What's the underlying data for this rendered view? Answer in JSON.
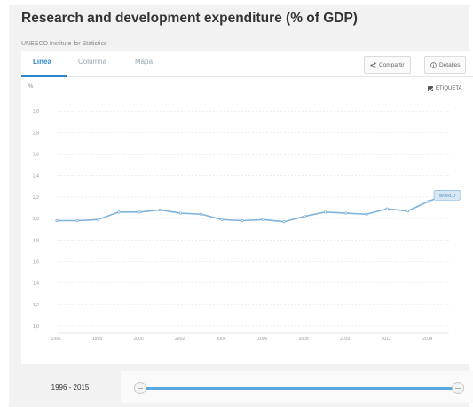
{
  "page": {
    "title": "Research and development expenditure (% of GDP)",
    "source": "UNESCO Institute for Statistics"
  },
  "tabs": [
    {
      "label": "Línea",
      "active": true
    },
    {
      "label": "Columna",
      "active": false
    },
    {
      "label": "Mapa",
      "active": false
    }
  ],
  "toolbar": {
    "share_label": "Compartir",
    "share_icon": "share-icon",
    "details_label": "Detalles",
    "details_icon": "info-icon"
  },
  "legend": {
    "label": "ETIQUETA",
    "checked": true
  },
  "range": {
    "label": "1996 - 2015",
    "start": 0,
    "end": 1
  },
  "colors": {
    "accent": "#2e86c8",
    "line": "#7fb3d9",
    "grid": "#e3e3e3"
  },
  "chart_data": {
    "type": "line",
    "ylabel": "%",
    "ylim": [
      1.0,
      3.2
    ],
    "yticks": [
      1.0,
      1.2,
      1.4,
      1.6,
      1.8,
      2.0,
      2.2,
      2.4,
      2.6,
      2.8,
      3.0
    ],
    "ytick_labels": [
      "1,0",
      "1,2",
      "1,4",
      "1,6",
      "1,8",
      "2,0",
      "2,2",
      "2,4",
      "2,6",
      "2,8",
      "3,0"
    ],
    "xticks": [
      1996,
      1998,
      2000,
      2002,
      2004,
      2006,
      2008,
      2010,
      2012,
      2014
    ],
    "xlim": [
      1996,
      2015
    ],
    "grid": true,
    "series": [
      {
        "name": "WORLD",
        "x": [
          1996,
          1997,
          1998,
          1999,
          2000,
          2001,
          2002,
          2003,
          2004,
          2005,
          2006,
          2007,
          2008,
          2009,
          2010,
          2011,
          2012,
          2013,
          2014,
          2015
        ],
        "values": [
          1.98,
          1.98,
          1.99,
          2.06,
          2.06,
          2.08,
          2.05,
          2.04,
          1.99,
          1.98,
          1.99,
          1.97,
          2.02,
          2.06,
          2.05,
          2.04,
          2.09,
          2.07,
          2.16,
          2.23
        ]
      }
    ]
  }
}
